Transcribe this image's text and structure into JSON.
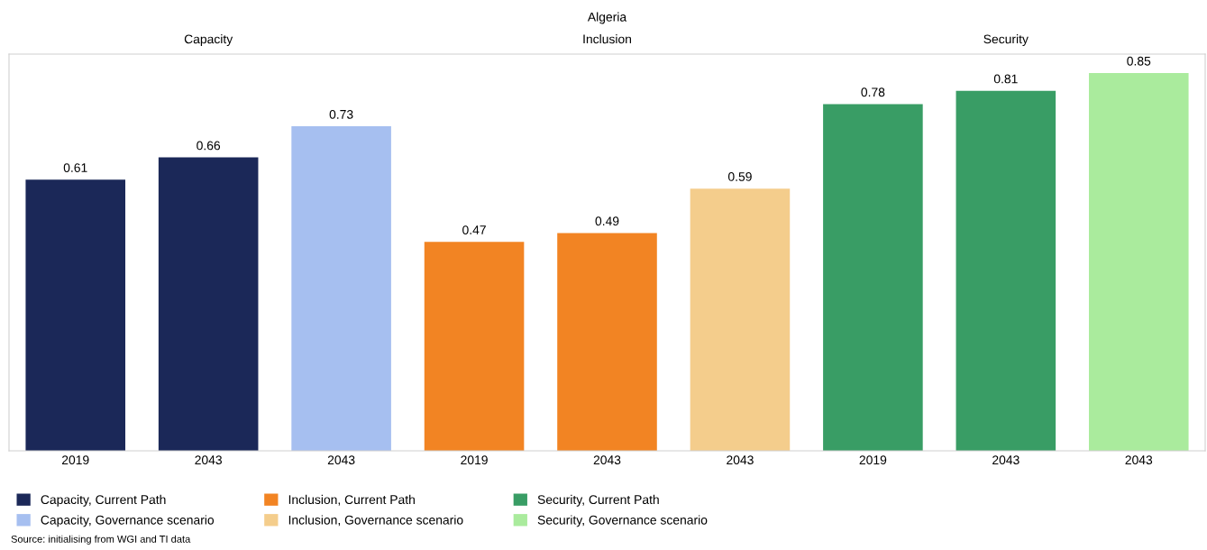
{
  "chart_data": {
    "type": "bar",
    "title": "Algeria",
    "categories": [
      "2019",
      "2043",
      "2043",
      "2019",
      "2043",
      "2043",
      "2019",
      "2043",
      "2043"
    ],
    "series": [
      {
        "name": "Capacity, Current Path",
        "color": "#1b2858",
        "values": [
          0.61,
          0.66,
          null,
          null,
          null,
          null,
          null,
          null,
          null
        ]
      },
      {
        "name": "Capacity, Governance scenario",
        "color": "#a6bff0",
        "values": [
          null,
          null,
          0.73,
          null,
          null,
          null,
          null,
          null,
          null
        ]
      },
      {
        "name": "Inclusion, Current Path",
        "color": "#f28423",
        "values": [
          null,
          null,
          null,
          0.47,
          0.49,
          null,
          null,
          null,
          null
        ]
      },
      {
        "name": "Inclusion, Governance scenario",
        "color": "#f4cd8c",
        "values": [
          null,
          null,
          null,
          null,
          null,
          0.59,
          null,
          null,
          null
        ]
      },
      {
        "name": "Security, Current Path",
        "color": "#399d65",
        "values": [
          null,
          null,
          null,
          null,
          null,
          null,
          0.78,
          0.81,
          null
        ]
      },
      {
        "name": "Security, Governance scenario",
        "color": "#aaeb9d",
        "values": [
          null,
          null,
          null,
          null,
          null,
          null,
          null,
          null,
          0.85
        ]
      }
    ],
    "data_labels": true,
    "tick_labels": "x",
    "grid": false,
    "legend": "bottom",
    "annotations": [
      "Capacity",
      "Inclusion",
      "Security",
      "Source: initialising from WGI and TI data"
    ]
  }
}
